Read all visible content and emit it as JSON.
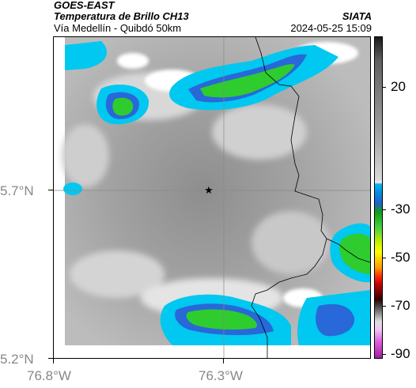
{
  "header": {
    "satellite": "GOES-EAST",
    "product": "Temperatura de Brillo CH13",
    "route": "Vía Medellín - Quibdó 50km",
    "org": "SIATA",
    "timestamp": "2024-05-25 15:09"
  },
  "axes": {
    "lat_labels": [
      "5.7°N",
      "5.2°N"
    ],
    "lon_labels": [
      "76.8°W",
      "76.3°W"
    ]
  },
  "colorbar": {
    "labels": [
      "20",
      "-30",
      "-50",
      "-70",
      "-90"
    ]
  },
  "colors": {
    "cold_green": "#2ecc2e",
    "cyan": "#00c8f0",
    "blue": "#2868d8"
  }
}
